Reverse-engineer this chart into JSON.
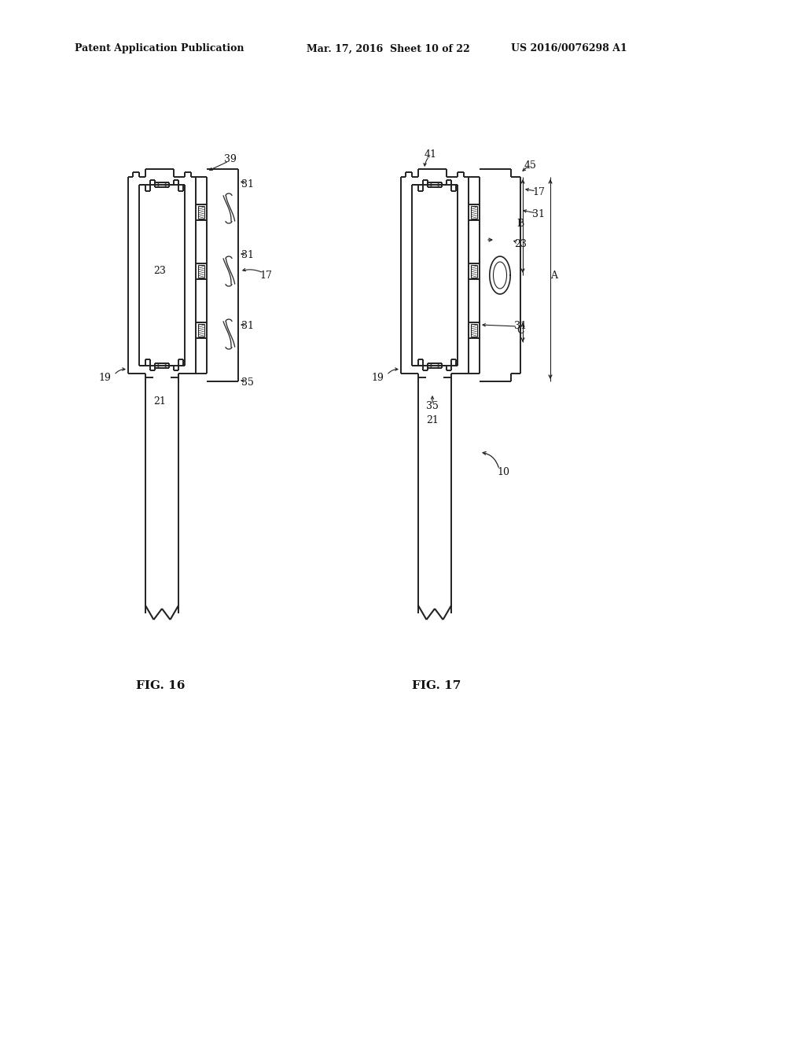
{
  "title_left": "Patent Application Publication",
  "title_mid": "Mar. 17, 2016  Sheet 10 of 22",
  "title_right": "US 2016/0076298 A1",
  "fig16_label": "FIG. 16",
  "fig17_label": "FIG. 17",
  "background_color": "#ffffff",
  "line_color": "#222222"
}
